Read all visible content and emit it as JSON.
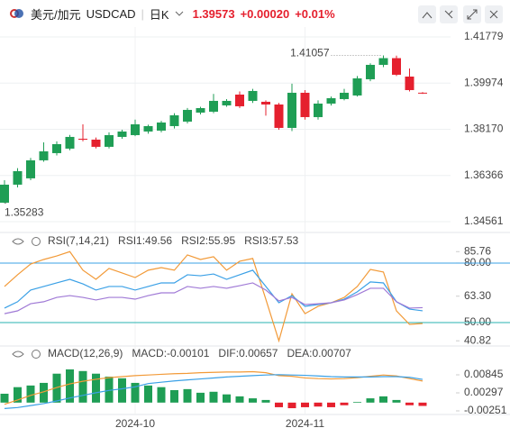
{
  "header": {
    "pair": "美元/加元",
    "symbol": "USDCAD",
    "period": "日K",
    "price": "1.39573",
    "change": "+0.00020",
    "change_pct": "+0.01%"
  },
  "chart_data": [
    {
      "type": "candlestick",
      "up_color": "#1f9e55",
      "down_color": "#e5202e",
      "open": [
        1.35302,
        1.36006,
        1.36253,
        1.36957,
        1.37238,
        1.37414,
        1.378,
        1.37766,
        1.37485,
        1.37872,
        1.37942,
        1.38083,
        1.38118,
        1.38294,
        1.3847,
        1.38822,
        1.38857,
        1.39104,
        1.39526,
        1.3928,
        1.39245,
        1.39139,
        1.38224,
        1.39597,
        1.38646,
        1.39174,
        1.3935,
        1.39491,
        1.40125,
        1.40688,
        1.4095,
        1.4023,
        1.396
      ],
      "high": [
        1.36182,
        1.3665,
        1.3705,
        1.37661,
        1.377,
        1.3795,
        1.38365,
        1.3785,
        1.3805,
        1.3815,
        1.3855,
        1.3835,
        1.385,
        1.388,
        1.39,
        1.3905,
        1.3955,
        1.3935,
        1.3965,
        1.3975,
        1.393,
        1.392,
        1.3995,
        1.397,
        1.393,
        1.3945,
        1.3975,
        1.4025,
        1.4075,
        1.41057,
        1.4105,
        1.40547,
        1.3962
      ],
      "low": [
        1.35283,
        1.359,
        1.3618,
        1.369,
        1.3715,
        1.3735,
        1.377,
        1.3742,
        1.3742,
        1.378,
        1.379,
        1.38,
        1.3805,
        1.382,
        1.384,
        1.3875,
        1.388,
        1.3905,
        1.39,
        1.392,
        1.387,
        1.3815,
        1.381,
        1.3855,
        1.3855,
        1.391,
        1.393,
        1.3945,
        1.4005,
        1.406,
        1.4025,
        1.3965,
        1.3955
      ],
      "close": [
        1.36006,
        1.36534,
        1.36957,
        1.37309,
        1.3759,
        1.37872,
        1.37766,
        1.37485,
        1.37942,
        1.38083,
        1.38365,
        1.38294,
        1.38435,
        1.38717,
        1.38928,
        1.38998,
        1.3928,
        1.3928,
        1.39069,
        1.39667,
        1.39139,
        1.38224,
        1.39597,
        1.38646,
        1.39174,
        1.39385,
        1.39597,
        1.4016,
        1.40688,
        1.4095,
        1.40301,
        1.39702,
        1.39573
      ],
      "ylim": [
        1.34138,
        1.42166
      ],
      "yticks": [
        1.34561,
        1.36366,
        {
          "value": 1.3817,
          "label": "1.38170"
        },
        1.39974,
        1.41779
      ],
      "grid": true,
      "annotations": [
        {
          "value": 1.41057
        },
        {
          "value": 1.35283
        }
      ]
    },
    {
      "type": "line",
      "title": "RSI(7,14,21)",
      "series": [
        {
          "name": "RSI1:49.56",
          "color": "#f29a38",
          "values": [
            68.2,
            74.1,
            79.5,
            81.8,
            83.6,
            85.76,
            76.4,
            71.8,
            77.3,
            75,
            72.7,
            76.4,
            77.7,
            76.4,
            84.1,
            81.8,
            83.2,
            76.4,
            80.9,
            82.3,
            61.8,
            40.82,
            64.5,
            54.5,
            58.2,
            60,
            62.7,
            68.2,
            76.8,
            75.5,
            55.9,
            49.1,
            49.56
          ]
        },
        {
          "name": "RSI2:55.95",
          "color": "#3aa0e6",
          "values": [
            57.3,
            60.5,
            66.4,
            68.2,
            70,
            71.8,
            69.5,
            66.4,
            68.2,
            68.2,
            66.4,
            68.2,
            70,
            70,
            74.1,
            73.6,
            74.5,
            71.8,
            74.1,
            76.4,
            68.2,
            60,
            63.6,
            58.2,
            59.1,
            60,
            61.8,
            65.5,
            70.5,
            70,
            60.5,
            56.8,
            55.95
          ]
        },
        {
          "name": "RSI3:57.53",
          "color": "#a07ad6",
          "values": [
            54.5,
            55.9,
            59.5,
            60.5,
            62.7,
            63.6,
            62.7,
            61.4,
            62.7,
            62.7,
            61.8,
            63.6,
            65,
            65,
            68.2,
            67.3,
            68.2,
            67.3,
            68.6,
            70,
            66.4,
            60.9,
            62.7,
            59.1,
            59.5,
            60,
            61.4,
            64.1,
            67.3,
            67.3,
            60.5,
            57.3,
            57.53
          ]
        }
      ],
      "ylim": [
        38.2,
        93.6
      ],
      "yticks": [
        40.82,
        {
          "value": 50,
          "label": "50.00"
        },
        {
          "value": 63.3,
          "label": "63.30"
        },
        {
          "value": 80,
          "label": "80.00"
        },
        85.76
      ],
      "hlines": [
        {
          "value": 80,
          "color": "#3aa0e6"
        },
        {
          "value": 50,
          "color": "#2ab3b0"
        }
      ]
    },
    {
      "type": "macd",
      "title": "MACD(12,26,9)",
      "categories": [
        null,
        null,
        null,
        null,
        null,
        null,
        null,
        null,
        null,
        null,
        "2024-10",
        null,
        null,
        null,
        null,
        null,
        null,
        null,
        null,
        null,
        null,
        null,
        null,
        "2024-11",
        null,
        null,
        null,
        null,
        null,
        null,
        null,
        null,
        null
      ],
      "series": [
        {
          "name": "MACD:-0.00101",
          "kind": "bar",
          "color": "#a07ad6",
          "up_color": "#1f9e55",
          "down_color": "#e5202e",
          "values": [
            0.0027,
            0.0047,
            0.0052,
            0.006,
            0.0088,
            0.0101,
            0.0096,
            0.0088,
            0.0079,
            0.0074,
            0.006,
            0.0052,
            0.0047,
            0.0038,
            0.0041,
            0.003,
            0.0033,
            0.0025,
            0.0019,
            0.0013,
            0.0008,
            -0.0014,
            -0.0017,
            -0.0014,
            -0.0012,
            -0.0014,
            -0.0008,
            0.0002,
            0.0013,
            0.0019,
            0.0008,
            -0.0008,
            -0.00101
          ]
        },
        {
          "name": "DIF:0.00657",
          "kind": "line",
          "color": "#f29a38",
          "values": [
            -0.0005,
            0.0008,
            0.0022,
            0.0033,
            0.0046,
            0.0057,
            0.0065,
            0.0071,
            0.0076,
            0.0079,
            0.0082,
            0.0084,
            0.0086,
            0.0088,
            0.0089,
            0.0091,
            0.0092,
            0.0093,
            0.0093,
            0.0094,
            0.0091,
            0.0082,
            0.008,
            0.0075,
            0.0073,
            0.0072,
            0.0073,
            0.0076,
            0.008,
            0.0084,
            0.0081,
            0.0073,
            0.00657
          ]
        },
        {
          "name": "DEA:0.00707",
          "kind": "line",
          "color": "#3aa0e6",
          "values": [
            -0.0018,
            -0.0015,
            -0.0009,
            -0.0003,
            0.0005,
            0.0014,
            0.0022,
            0.003,
            0.0037,
            0.0042,
            0.0048,
            0.0058,
            0.0062,
            0.0066,
            0.0069,
            0.0072,
            0.0075,
            0.0078,
            0.008,
            0.0082,
            0.0084,
            0.0085,
            0.0084,
            0.0083,
            0.0081,
            0.0079,
            0.0078,
            0.0078,
            0.0078,
            0.0079,
            0.0079,
            0.0077,
            0.00707
          ]
        }
      ],
      "ylim": [
        -0.00361,
        0.01722
      ],
      "yticks": [
        -0.00251,
        0.00297,
        0.00845
      ]
    }
  ]
}
